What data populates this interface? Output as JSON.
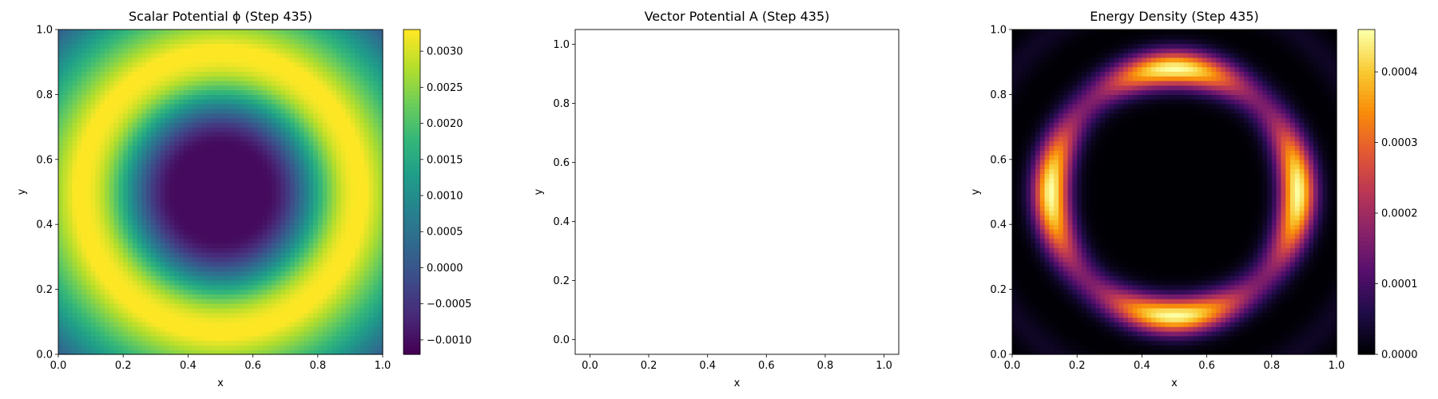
{
  "chart_data": [
    {
      "type": "heatmap",
      "title": "Scalar Potential ϕ (Step 435)",
      "xlabel": "x",
      "ylabel": "y",
      "xlim": [
        0.0,
        1.0
      ],
      "ylim": [
        0.0,
        1.0
      ],
      "xticks": [
        "0.0",
        "0.2",
        "0.4",
        "0.6",
        "0.8",
        "1.0"
      ],
      "yticks": [
        "0.0",
        "0.2",
        "0.4",
        "0.6",
        "0.8",
        "1.0"
      ],
      "colormap": "viridis",
      "colorbar": {
        "range": [
          -0.0012,
          0.0033
        ],
        "ticks": [
          {
            "value": -0.001,
            "label": "−0.0010"
          },
          {
            "value": -0.0005,
            "label": "−0.0005"
          },
          {
            "value": 0.0,
            "label": "0.0000"
          },
          {
            "value": 0.0005,
            "label": "0.0005"
          },
          {
            "value": 0.001,
            "label": "0.0010"
          },
          {
            "value": 0.0015,
            "label": "0.0015"
          },
          {
            "value": 0.002,
            "label": "0.0020"
          },
          {
            "value": 0.0025,
            "label": "0.0025"
          },
          {
            "value": 0.003,
            "label": "0.0030"
          }
        ]
      },
      "field": {
        "description": "Radially symmetric field centered at (0.5,0.5): minimum (~-0.0011) in a disk, rising to maximum (~0.0033) on a ring near r≈0.42 (edge midpoints), teal near corners.",
        "center": [
          0.5,
          0.5
        ],
        "min_value": -0.0011,
        "max_value": 0.0033,
        "ring_radius": 0.42
      }
    },
    {
      "type": "scatter",
      "title": "Vector Potential A (Step 435)",
      "xlabel": "x",
      "ylabel": "y",
      "xlim": [
        -0.05,
        1.05
      ],
      "ylim": [
        -0.05,
        1.05
      ],
      "xticks": [
        "0.0",
        "0.2",
        "0.4",
        "0.6",
        "0.8",
        "1.0"
      ],
      "yticks": [
        "0.0",
        "0.2",
        "0.4",
        "0.6",
        "0.8",
        "1.0"
      ],
      "series": []
    },
    {
      "type": "heatmap",
      "title": "Energy Density (Step 435)",
      "xlabel": "x",
      "ylabel": "y",
      "xlim": [
        0.0,
        1.0
      ],
      "ylim": [
        0.0,
        1.0
      ],
      "xticks": [
        "0.0",
        "0.2",
        "0.4",
        "0.6",
        "0.8",
        "1.0"
      ],
      "yticks": [
        "0.0",
        "0.2",
        "0.4",
        "0.6",
        "0.8",
        "1.0"
      ],
      "colormap": "inferno",
      "colorbar": {
        "range": [
          0.0,
          0.00046
        ],
        "ticks": [
          {
            "value": 0.0,
            "label": "0.0000"
          },
          {
            "value": 0.0001,
            "label": "0.0001"
          },
          {
            "value": 0.0002,
            "label": "0.0002"
          },
          {
            "value": 0.0003,
            "label": "0.0003"
          },
          {
            "value": 0.0004,
            "label": "0.0004"
          }
        ]
      },
      "field": {
        "description": "Octagonal bright ring centered at (0.5,0.5) with radius ≈0.38; brightest (~0.00046) at edge midpoints (0.12,0.5),(0.88,0.5),(0.5,0.12),(0.5,0.88); dark interior and corners.",
        "center": [
          0.5,
          0.5
        ],
        "max_value": 0.00046,
        "ring_radius": 0.38
      }
    }
  ]
}
